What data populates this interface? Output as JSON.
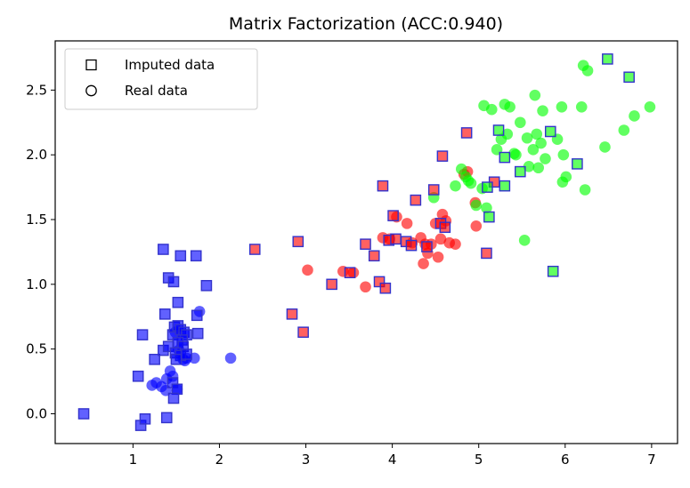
{
  "chart_data": {
    "type": "scatter",
    "title": "Matrix Factorization (ACC:0.940)",
    "xlabel": "",
    "ylabel": "",
    "xlim": [
      0.1,
      7.3
    ],
    "ylim": [
      -0.23,
      2.88
    ],
    "xticks": [
      1,
      2,
      3,
      4,
      5,
      6,
      7
    ],
    "yticks": [
      0.0,
      0.5,
      1.0,
      1.5,
      2.0,
      2.5
    ],
    "yticklabels": [
      "0.0",
      "0.5",
      "1.0",
      "1.5",
      "2.0",
      "2.5"
    ],
    "grid": false,
    "legend": {
      "placement": "top-left",
      "entries": [
        {
          "marker": "square",
          "label": "Imputed data"
        },
        {
          "marker": "circle",
          "label": "Real data"
        }
      ]
    },
    "colors": {
      "class_0": "#0000ff",
      "class_1": "#ff0000",
      "class_2": "#00ff00",
      "imputed_edge": "#3333cc"
    },
    "series": [
      {
        "marker": "square",
        "group": "imputed",
        "class": 0,
        "points": [
          [
            0.43,
            0.0
          ],
          [
            1.09,
            -0.09
          ],
          [
            1.14,
            -0.04
          ],
          [
            1.39,
            -0.03
          ],
          [
            1.11,
            0.61
          ],
          [
            1.06,
            0.29
          ],
          [
            1.25,
            0.42
          ],
          [
            1.35,
            0.49
          ],
          [
            1.41,
            0.52
          ],
          [
            1.46,
            0.61
          ],
          [
            1.48,
            0.67
          ],
          [
            1.52,
            0.68
          ],
          [
            1.55,
            0.65
          ],
          [
            1.59,
            0.63
          ],
          [
            1.62,
            0.61
          ],
          [
            1.75,
            0.62
          ],
          [
            1.57,
            0.57
          ],
          [
            1.52,
            0.55
          ],
          [
            1.58,
            0.52
          ],
          [
            1.49,
            0.47
          ],
          [
            1.55,
            0.45
          ],
          [
            1.62,
            0.46
          ],
          [
            1.5,
            0.42
          ],
          [
            1.46,
            0.24
          ],
          [
            1.51,
            0.19
          ],
          [
            1.47,
            0.12
          ],
          [
            1.37,
            0.77
          ],
          [
            1.52,
            0.86
          ],
          [
            1.41,
            1.05
          ],
          [
            1.47,
            1.02
          ],
          [
            1.35,
            1.27
          ],
          [
            1.55,
            1.22
          ],
          [
            1.73,
            1.22
          ],
          [
            1.85,
            0.99
          ],
          [
            1.74,
            0.76
          ]
        ]
      },
      {
        "marker": "square",
        "group": "imputed",
        "class": 1,
        "points": [
          [
            2.41,
            1.27
          ],
          [
            2.84,
            0.77
          ],
          [
            2.97,
            0.63
          ],
          [
            2.91,
            1.33
          ],
          [
            3.3,
            1.0
          ],
          [
            3.51,
            1.09
          ],
          [
            3.69,
            1.31
          ],
          [
            3.79,
            1.22
          ],
          [
            3.85,
            1.02
          ],
          [
            3.92,
            0.97
          ],
          [
            3.89,
            1.76
          ],
          [
            3.96,
            1.34
          ],
          [
            4.01,
            1.53
          ],
          [
            4.04,
            1.35
          ],
          [
            4.16,
            1.33
          ],
          [
            4.22,
            1.3
          ],
          [
            4.27,
            1.65
          ],
          [
            4.4,
            1.29
          ],
          [
            4.48,
            1.73
          ],
          [
            4.56,
            1.47
          ],
          [
            4.58,
            1.99
          ],
          [
            4.61,
            1.44
          ],
          [
            4.86,
            2.17
          ],
          [
            5.09,
            1.24
          ],
          [
            5.18,
            1.79
          ]
        ]
      },
      {
        "marker": "square",
        "group": "imputed",
        "class": 2,
        "points": [
          [
            5.1,
            1.75
          ],
          [
            5.12,
            1.52
          ],
          [
            5.23,
            2.19
          ],
          [
            5.3,
            1.98
          ],
          [
            5.3,
            1.76
          ],
          [
            5.48,
            1.87
          ],
          [
            5.83,
            2.18
          ],
          [
            5.86,
            1.1
          ],
          [
            6.14,
            1.93
          ],
          [
            6.49,
            2.74
          ],
          [
            6.74,
            2.6
          ]
        ]
      },
      {
        "marker": "circle",
        "group": "real",
        "class": 0,
        "points": [
          [
            1.22,
            0.22
          ],
          [
            1.27,
            0.24
          ],
          [
            1.33,
            0.21
          ],
          [
            1.38,
            0.18
          ],
          [
            1.39,
            0.27
          ],
          [
            1.43,
            0.33
          ],
          [
            1.46,
            0.29
          ],
          [
            1.51,
            0.19
          ],
          [
            1.49,
            0.63
          ],
          [
            1.53,
            0.49
          ],
          [
            1.58,
            0.42
          ],
          [
            1.6,
            0.41
          ],
          [
            1.62,
            0.43
          ],
          [
            1.71,
            0.43
          ],
          [
            1.77,
            0.79
          ],
          [
            2.13,
            0.43
          ]
        ]
      },
      {
        "marker": "circle",
        "group": "real",
        "class": 1,
        "points": [
          [
            3.02,
            1.11
          ],
          [
            3.43,
            1.1
          ],
          [
            3.55,
            1.09
          ],
          [
            3.69,
            0.98
          ],
          [
            3.89,
            1.36
          ],
          [
            3.97,
            1.35
          ],
          [
            4.05,
            1.52
          ],
          [
            4.17,
            1.47
          ],
          [
            4.23,
            1.32
          ],
          [
            4.33,
            1.36
          ],
          [
            4.36,
            1.16
          ],
          [
            4.38,
            1.31
          ],
          [
            4.41,
            1.24
          ],
          [
            4.45,
            1.31
          ],
          [
            4.5,
            1.47
          ],
          [
            4.53,
            1.21
          ],
          [
            4.56,
            1.35
          ],
          [
            4.58,
            1.54
          ],
          [
            4.62,
            1.49
          ],
          [
            4.66,
            1.32
          ],
          [
            4.73,
            1.31
          ],
          [
            4.83,
            1.85
          ],
          [
            4.87,
            1.87
          ],
          [
            4.96,
            1.63
          ],
          [
            4.97,
            1.45
          ]
        ]
      },
      {
        "marker": "circle",
        "group": "real",
        "class": 2,
        "points": [
          [
            4.48,
            1.67
          ],
          [
            4.73,
            1.76
          ],
          [
            4.8,
            1.89
          ],
          [
            4.85,
            1.83
          ],
          [
            4.88,
            1.8
          ],
          [
            4.91,
            1.78
          ],
          [
            4.97,
            1.61
          ],
          [
            5.04,
            1.74
          ],
          [
            5.09,
            1.59
          ],
          [
            5.06,
            2.38
          ],
          [
            5.15,
            2.35
          ],
          [
            5.21,
            2.04
          ],
          [
            5.26,
            2.12
          ],
          [
            5.3,
            2.39
          ],
          [
            5.33,
            2.16
          ],
          [
            5.36,
            2.37
          ],
          [
            5.41,
            2.01
          ],
          [
            5.43,
            2.0
          ],
          [
            5.48,
            2.25
          ],
          [
            5.53,
            1.34
          ],
          [
            5.56,
            2.13
          ],
          [
            5.58,
            1.91
          ],
          [
            5.63,
            2.04
          ],
          [
            5.65,
            2.46
          ],
          [
            5.67,
            2.16
          ],
          [
            5.69,
            1.9
          ],
          [
            5.72,
            2.09
          ],
          [
            5.74,
            2.34
          ],
          [
            5.77,
            1.97
          ],
          [
            5.91,
            2.12
          ],
          [
            5.96,
            2.37
          ],
          [
            5.97,
            1.79
          ],
          [
            5.98,
            2.0
          ],
          [
            6.01,
            1.83
          ],
          [
            6.19,
            2.37
          ],
          [
            6.21,
            2.69
          ],
          [
            6.23,
            1.73
          ],
          [
            6.26,
            2.65
          ],
          [
            6.46,
            2.06
          ],
          [
            6.68,
            2.19
          ],
          [
            6.8,
            2.3
          ],
          [
            6.98,
            2.37
          ]
        ]
      }
    ]
  }
}
